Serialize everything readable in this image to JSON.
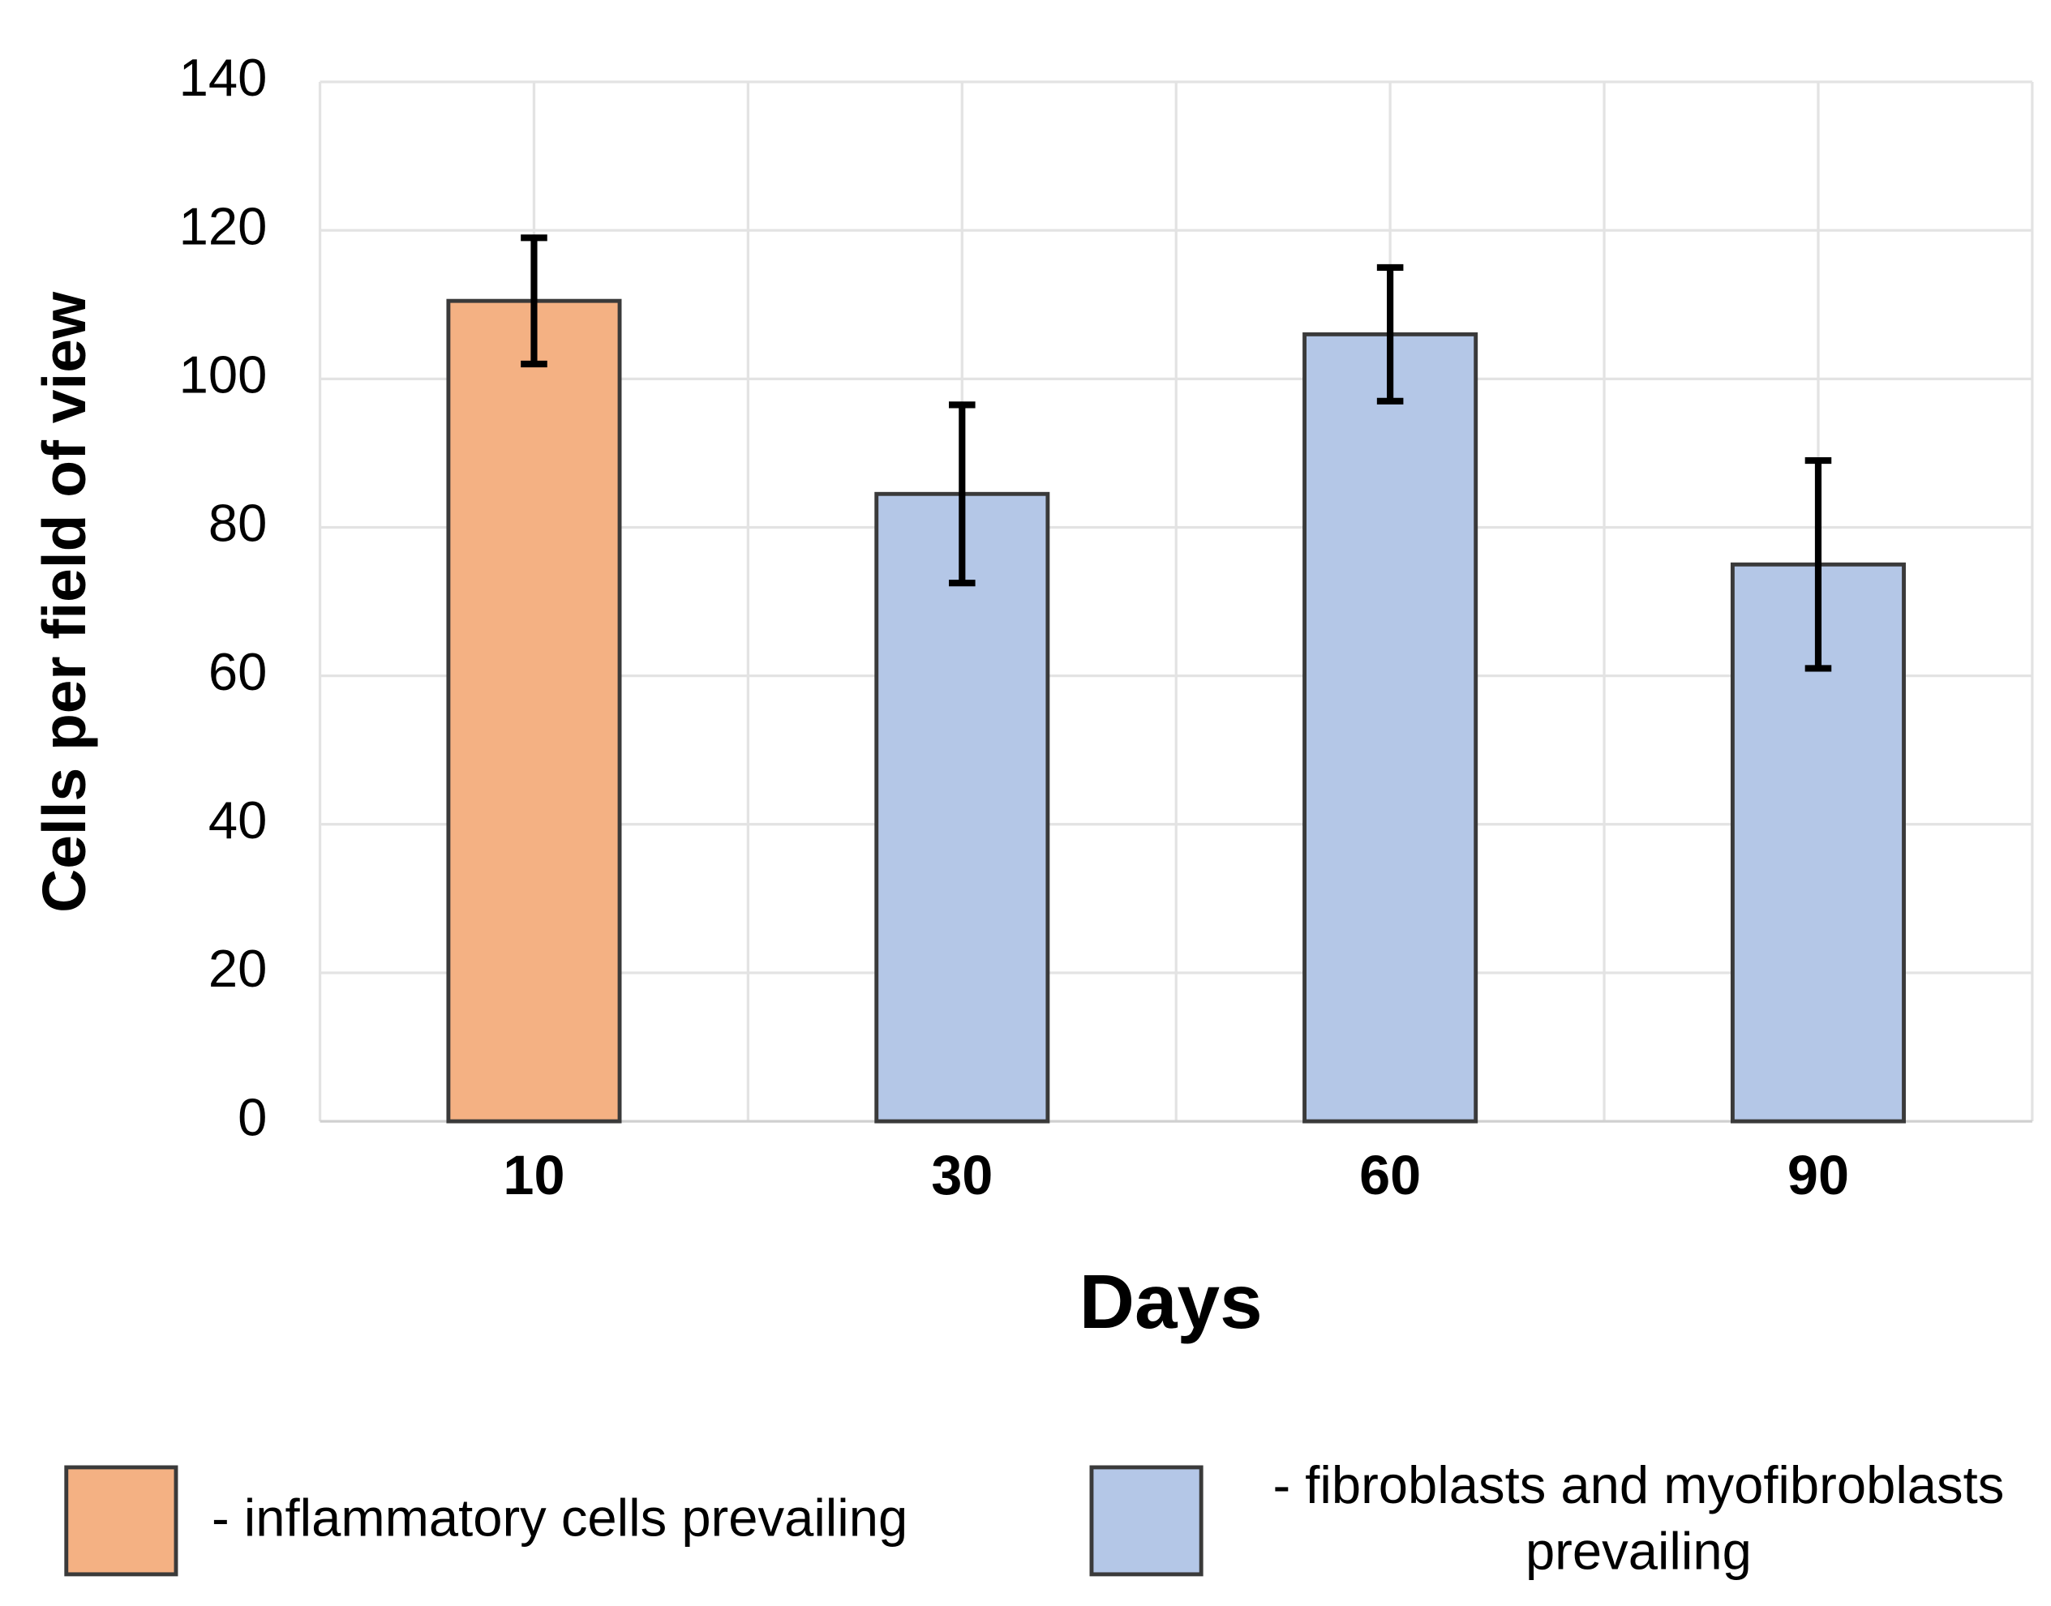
{
  "chart_data": {
    "type": "bar",
    "x_label": "Days",
    "y_label": "Cells per field of view",
    "categories": [
      "10",
      "30",
      "60",
      "90"
    ],
    "series": [
      {
        "name": "- inflammatory cells prevailing",
        "color": "#f4b183",
        "values": [
          110.5,
          null,
          null,
          null
        ],
        "errors": [
          8.5,
          null,
          null,
          null
        ]
      },
      {
        "name": "- fibroblasts and myofibroblasts prevailing",
        "color": "#b4c7e7",
        "values": [
          null,
          84.5,
          106,
          75
        ],
        "errors": [
          null,
          12,
          9,
          14
        ]
      }
    ],
    "ylim": [
      0,
      140
    ],
    "yticks": [
      0,
      20,
      40,
      60,
      80,
      100,
      120,
      140
    ],
    "grid": true
  }
}
